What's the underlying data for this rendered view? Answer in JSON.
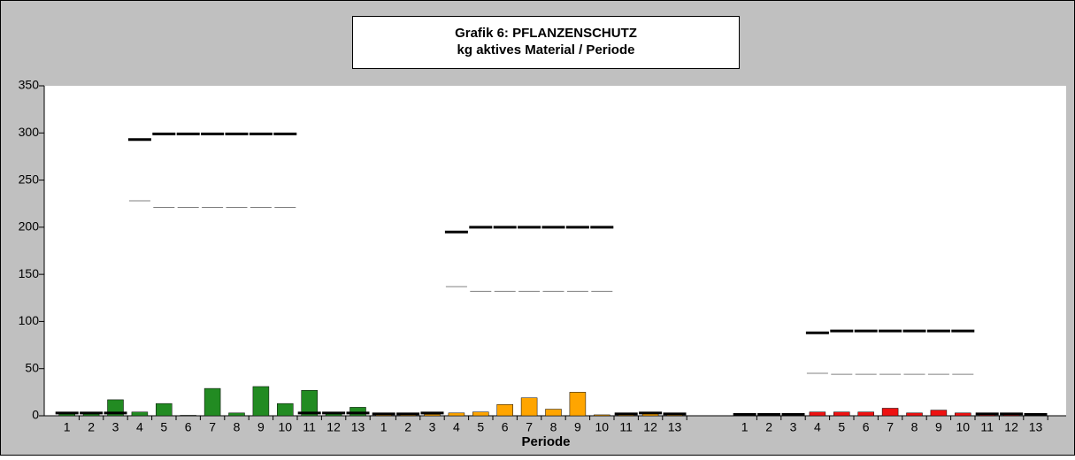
{
  "chart_data": {
    "type": "bar",
    "title": [
      "Grafik 6: PFLANZENSCHUTZ",
      "kg aktives Material / Periode"
    ],
    "x_label": "Periode",
    "categories": [
      "1",
      "2",
      "3",
      "4",
      "5",
      "6",
      "7",
      "8",
      "9",
      "10",
      "11",
      "12",
      "13"
    ],
    "ylim": [
      0,
      350
    ],
    "yticks": [
      0,
      50,
      100,
      150,
      200,
      250,
      300,
      350
    ],
    "series": [
      {
        "color": "#228b22",
        "values": [
          2,
          2,
          17,
          4,
          13,
          0.5,
          29,
          3,
          31,
          13,
          27,
          2,
          9
        ],
        "upper_line": [
          2,
          2,
          2,
          292,
          298,
          298,
          298,
          298,
          298,
          298,
          2,
          2,
          2
        ],
        "lower_line": [
          null,
          null,
          null,
          228,
          221,
          221,
          221,
          221,
          221,
          221,
          null,
          null,
          null
        ]
      },
      {
        "color": "#ffa500",
        "values": [
          1,
          1,
          1.5,
          3,
          4,
          12,
          19,
          7,
          25,
          1,
          1,
          4,
          1
        ],
        "upper_line": [
          1,
          1,
          2,
          194,
          199,
          199,
          199,
          199,
          199,
          199,
          1,
          2,
          1
        ],
        "lower_line": [
          null,
          null,
          null,
          137,
          132,
          132,
          132,
          132,
          132,
          132,
          null,
          null,
          null
        ]
      },
      {
        "color": "#ee1111",
        "values": [
          0.5,
          0.5,
          0.5,
          4,
          4,
          4,
          8,
          3,
          6,
          3,
          3,
          1,
          0.5
        ],
        "upper_line": [
          0.5,
          0.5,
          0.5,
          87,
          89,
          89,
          89,
          89,
          89,
          89,
          1,
          1,
          0.5
        ],
        "lower_line": [
          null,
          null,
          null,
          45,
          44,
          44,
          44,
          44,
          44,
          44,
          null,
          null,
          null
        ]
      }
    ],
    "upper_line_color": "#000000",
    "lower_line_color": "#808080"
  }
}
